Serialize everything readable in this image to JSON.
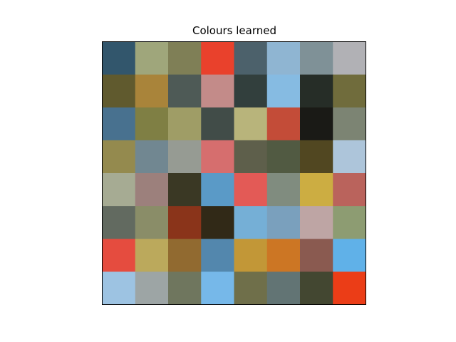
{
  "chart_data": {
    "type": "heatmap",
    "title": "Colours learned",
    "xlabel": "",
    "ylabel": "",
    "axis_ticks": "hidden",
    "grid": false,
    "rows": 8,
    "cols": 8,
    "colors": [
      [
        "#32566c",
        "#9fa67b",
        "#7f7f56",
        "#e9412c",
        "#4c616b",
        "#8fb5d2",
        "#7f9197",
        "#b1b1b5"
      ],
      [
        "#605a2e",
        "#a9843a",
        "#4e5a56",
        "#c38b89",
        "#323f3d",
        "#86bbe2",
        "#262d27",
        "#706c3c"
      ],
      [
        "#48718f",
        "#7f7f44",
        "#9f9d66",
        "#414c48",
        "#b8b47b",
        "#c34c38",
        "#1a1a16",
        "#7c8473"
      ],
      [
        "#948a4e",
        "#718791",
        "#969b93",
        "#d66e6e",
        "#5e5f4b",
        "#515a42",
        "#514721",
        "#adc5da"
      ],
      [
        "#a6ab93",
        "#9c807c",
        "#3a3824",
        "#5a9ac7",
        "#e35a56",
        "#808c7f",
        "#ccad42",
        "#ba635c"
      ],
      [
        "#626a60",
        "#8a8d68",
        "#8a341a",
        "#312917",
        "#75afd6",
        "#7aa0bd",
        "#bea5a4",
        "#8d9c72"
      ],
      [
        "#e54c3f",
        "#bba95c",
        "#916a30",
        "#5387ad",
        "#c29737",
        "#cc7624",
        "#8a5a50",
        "#60b1e8"
      ],
      [
        "#9dc3e2",
        "#9da5a5",
        "#6f765e",
        "#76b8e9",
        "#6f6f4a",
        "#627474",
        "#434731",
        "#eb3d17"
      ]
    ]
  }
}
